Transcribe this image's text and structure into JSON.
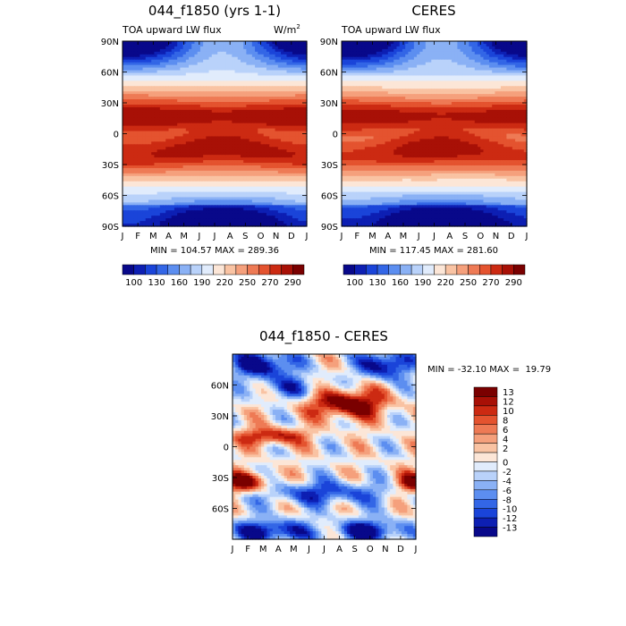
{
  "chart_data": [
    {
      "type": "heatmap",
      "title": "044_f1850 (yrs 1-1)",
      "subtitle_left": "TOA upward LW flux",
      "units_text": "W/m",
      "units_sup": "2",
      "x_ticks": [
        "J",
        "F",
        "M",
        "A",
        "M",
        "J",
        "J",
        "A",
        "S",
        "O",
        "N",
        "D",
        "J"
      ],
      "y_ticks": [
        "90N",
        "60N",
        "30N",
        "0",
        "30S",
        "60S",
        "90S"
      ],
      "y_values": [
        90,
        60,
        30,
        0,
        -30,
        -60,
        -90
      ],
      "ylim": [
        -90,
        90
      ],
      "stats_text": "MIN = 104.57 MAX = 289.36",
      "min": 104.57,
      "max": 289.36,
      "cbar_labels": [
        "100",
        "130",
        "160",
        "190",
        "220",
        "250",
        "270",
        "290"
      ]
    },
    {
      "type": "heatmap",
      "title": "CERES",
      "subtitle_left": "TOA upward LW flux",
      "x_ticks": [
        "J",
        "F",
        "M",
        "A",
        "M",
        "J",
        "J",
        "A",
        "S",
        "O",
        "N",
        "D",
        "J"
      ],
      "y_ticks": [
        "90N",
        "60N",
        "30N",
        "0",
        "30S",
        "60S",
        "90S"
      ],
      "y_values": [
        90,
        60,
        30,
        0,
        -30,
        -60,
        -90
      ],
      "ylim": [
        -90,
        90
      ],
      "stats_text": "MIN = 117.45 MAX = 281.60",
      "min": 117.45,
      "max": 281.6,
      "cbar_labels": [
        "100",
        "130",
        "160",
        "190",
        "220",
        "250",
        "270",
        "290"
      ]
    },
    {
      "type": "heatmap",
      "title": "044_f1850 - CERES",
      "x_ticks": [
        "J",
        "F",
        "M",
        "A",
        "M",
        "J",
        "J",
        "A",
        "S",
        "O",
        "N",
        "D",
        "J"
      ],
      "y_ticks": [
        "60N",
        "30N",
        "0",
        "30S",
        "60S"
      ],
      "y_values": [
        60,
        30,
        0,
        -30,
        -60
      ],
      "ylim": [
        -90,
        90
      ],
      "stats_text": "MIN = -32.10 MAX =  19.79",
      "min": -32.1,
      "max": 19.79,
      "cbar_labels": [
        "13",
        "12",
        "10",
        "8",
        "6",
        "4",
        "2",
        "0",
        "-2",
        "-4",
        "-6",
        "-8",
        "-10",
        "-12",
        "-13"
      ]
    }
  ],
  "colors": {
    "abs_scale": [
      "#08088a",
      "#0d1fb3",
      "#1a44d9",
      "#3366e6",
      "#5c8ef0",
      "#8ab1f5",
      "#b9d2fa",
      "#e1ecfc",
      "#fce6d7",
      "#f9c3a3",
      "#f5a07c",
      "#ee7a55",
      "#e4532f",
      "#cc2a12",
      "#a81006",
      "#7a0000"
    ],
    "diff_scale": [
      "#7a0000",
      "#a81006",
      "#cc2a12",
      "#e4532f",
      "#ee7a55",
      "#f5a07c",
      "#f9c3a3",
      "#fce6d7",
      "#e1ecfc",
      "#b9d2fa",
      "#8ab1f5",
      "#5c8ef0",
      "#3366e6",
      "#1a44d9",
      "#0d1fb3",
      "#08088a"
    ]
  }
}
